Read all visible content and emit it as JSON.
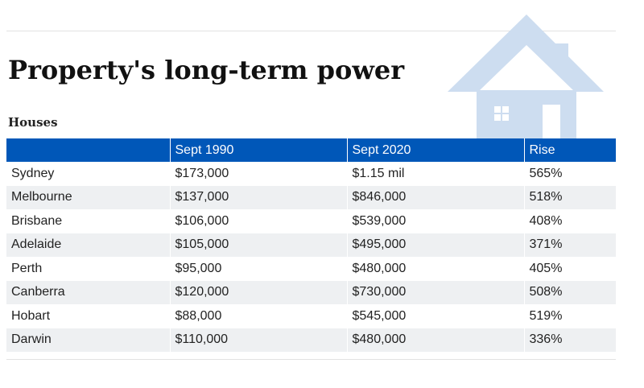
{
  "title": "Property's long-term power",
  "subtitle": "Houses",
  "colors": {
    "header": "#0057b8",
    "house_icon": "#cdddf0",
    "stripe": "#eef0f2"
  },
  "icon": "house-icon",
  "table": {
    "headers": [
      "",
      "Sept 1990",
      "Sept 2020",
      "Rise"
    ],
    "rows": [
      [
        "Sydney",
        "$173,000",
        "$1.15 mil",
        "565%"
      ],
      [
        "Melbourne",
        "$137,000",
        "$846,000",
        "518%"
      ],
      [
        "Brisbane",
        "$106,000",
        "$539,000",
        "408%"
      ],
      [
        "Adelaide",
        "$105,000",
        "$495,000",
        "371%"
      ],
      [
        "Perth",
        "$95,000",
        "$480,000",
        "405%"
      ],
      [
        "Canberra",
        "$120,000",
        "$730,000",
        "508%"
      ],
      [
        "Hobart",
        "$88,000",
        "$545,000",
        "519%"
      ],
      [
        "Darwin",
        "$110,000",
        "$480,000",
        "336%"
      ]
    ]
  }
}
